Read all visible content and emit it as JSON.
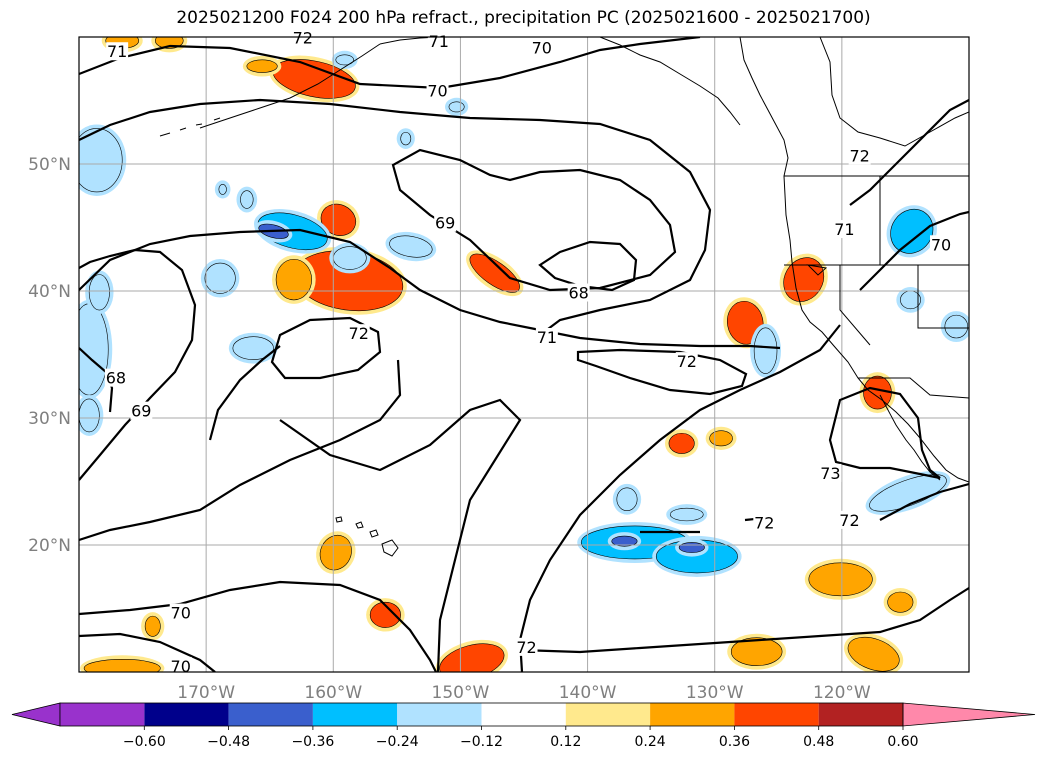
{
  "title": "2025021200 F024 200 hPa refract., precipitation PC (2025021600 - 2025021700)",
  "map": {
    "lon_range": [
      -180,
      -110
    ],
    "lat_range": [
      10,
      60
    ],
    "lon_ticks": [
      {
        "value": -170,
        "label": "170°W"
      },
      {
        "value": -160,
        "label": "160°W"
      },
      {
        "value": -150,
        "label": "150°W"
      },
      {
        "value": -140,
        "label": "140°W"
      },
      {
        "value": -130,
        "label": "130°W"
      },
      {
        "value": -120,
        "label": "120°W"
      }
    ],
    "lat_ticks": [
      {
        "value": 20,
        "label": "20°N"
      },
      {
        "value": 30,
        "label": "30°N"
      },
      {
        "value": 40,
        "label": "40°N"
      },
      {
        "value": 50,
        "label": "50°N"
      }
    ],
    "contour_labels": [
      {
        "text": "70",
        "lon": -143.6,
        "lat": 59.1
      },
      {
        "text": "70",
        "lon": -151.8,
        "lat": 55.7
      },
      {
        "text": "71",
        "lon": -177.0,
        "lat": 58.8
      },
      {
        "text": "72",
        "lon": -162.4,
        "lat": 59.9
      },
      {
        "text": "71",
        "lon": -151.7,
        "lat": 59.6
      },
      {
        "text": "69",
        "lon": -151.2,
        "lat": 45.3
      },
      {
        "text": "68",
        "lon": -140.7,
        "lat": 39.8
      },
      {
        "text": "72",
        "lon": -158.0,
        "lat": 36.6
      },
      {
        "text": "71",
        "lon": -143.2,
        "lat": 36.3
      },
      {
        "text": "72",
        "lon": -132.2,
        "lat": 34.4
      },
      {
        "text": "68",
        "lon": -177.1,
        "lat": 33.1
      },
      {
        "text": "69",
        "lon": -175.1,
        "lat": 30.5
      },
      {
        "text": "73",
        "lon": -120.9,
        "lat": 25.6
      },
      {
        "text": "72",
        "lon": -119.4,
        "lat": 21.9
      },
      {
        "text": "72",
        "lon": -126.1,
        "lat": 21.7
      },
      {
        "text": "70",
        "lon": -172.0,
        "lat": 14.6
      },
      {
        "text": "72",
        "lon": -144.8,
        "lat": 11.9
      },
      {
        "text": "70",
        "lon": -172.0,
        "lat": 10.4
      },
      {
        "text": "72",
        "lon": -118.6,
        "lat": 50.6
      },
      {
        "text": "71",
        "lon": -119.8,
        "lat": 44.8
      },
      {
        "text": "70",
        "lon": -112.2,
        "lat": 43.6
      }
    ],
    "precip_patches": [
      {
        "lon": -161.5,
        "lat": 56.7,
        "rx": 3.3,
        "ry": 1.4,
        "level": "0.36",
        "rot": 12
      },
      {
        "lon": -176.6,
        "lat": 59.7,
        "rx": 1.3,
        "ry": 0.6,
        "level": "0.24",
        "rot": 0
      },
      {
        "lon": -172.9,
        "lat": 59.7,
        "rx": 1.1,
        "ry": 0.6,
        "level": "0.24",
        "rot": 0
      },
      {
        "lon": -165.6,
        "lat": 57.7,
        "rx": 1.2,
        "ry": 0.5,
        "level": "0.24",
        "rot": 0
      },
      {
        "lon": -158.8,
        "lat": 40.8,
        "rx": 4.3,
        "ry": 2.3,
        "level": "0.36",
        "rot": 8
      },
      {
        "lon": -163.1,
        "lat": 40.9,
        "rx": 1.4,
        "ry": 1.6,
        "level": "0.24",
        "rot": 0
      },
      {
        "lon": -159.6,
        "lat": 45.6,
        "rx": 1.4,
        "ry": 1.2,
        "level": "0.36",
        "rot": 25
      },
      {
        "lon": -147.3,
        "lat": 41.4,
        "rx": 2.3,
        "ry": 0.9,
        "level": "0.36",
        "rot": 35
      },
      {
        "lon": -127.6,
        "lat": 37.5,
        "rx": 1.4,
        "ry": 1.7,
        "level": "0.36",
        "rot": -10
      },
      {
        "lon": -123.0,
        "lat": 40.9,
        "rx": 1.5,
        "ry": 1.8,
        "level": "0.36",
        "rot": 30
      },
      {
        "lon": -117.2,
        "lat": 32.0,
        "rx": 1.1,
        "ry": 1.3,
        "level": "0.36",
        "rot": 0
      },
      {
        "lon": -132.6,
        "lat": 28.0,
        "rx": 1.0,
        "ry": 0.8,
        "level": "0.36",
        "rot": 0
      },
      {
        "lon": -129.5,
        "lat": 28.4,
        "rx": 0.9,
        "ry": 0.6,
        "level": "0.24",
        "rot": 0
      },
      {
        "lon": -159.8,
        "lat": 19.4,
        "rx": 1.2,
        "ry": 1.4,
        "level": "0.24",
        "rot": 25
      },
      {
        "lon": -155.9,
        "lat": 14.5,
        "rx": 1.2,
        "ry": 1.0,
        "level": "0.36",
        "rot": 0
      },
      {
        "lon": -149.1,
        "lat": 10.8,
        "rx": 2.6,
        "ry": 1.3,
        "level": "0.36",
        "rot": -15
      },
      {
        "lon": -174.2,
        "lat": 13.6,
        "rx": 0.6,
        "ry": 0.8,
        "level": "0.24",
        "rot": 0
      },
      {
        "lon": -176.6,
        "lat": 10.3,
        "rx": 3.0,
        "ry": 0.7,
        "level": "0.24",
        "rot": 0
      },
      {
        "lon": -120.1,
        "lat": 17.3,
        "rx": 2.5,
        "ry": 1.3,
        "level": "0.24",
        "rot": 0
      },
      {
        "lon": -115.4,
        "lat": 15.5,
        "rx": 1.0,
        "ry": 0.8,
        "level": "0.24",
        "rot": 0
      },
      {
        "lon": -126.7,
        "lat": 11.6,
        "rx": 2.0,
        "ry": 1.1,
        "level": "0.24",
        "rot": 0
      },
      {
        "lon": -117.5,
        "lat": 11.4,
        "rx": 2.1,
        "ry": 1.2,
        "level": "0.24",
        "rot": 20
      },
      {
        "lon": -163.2,
        "lat": 44.7,
        "rx": 2.8,
        "ry": 1.3,
        "level": "-0.36",
        "rot": 15
      },
      {
        "lon": -158.7,
        "lat": 42.6,
        "rx": 1.3,
        "ry": 0.9,
        "level": "-0.24",
        "rot": 0
      },
      {
        "lon": -153.9,
        "lat": 43.5,
        "rx": 1.7,
        "ry": 0.8,
        "level": "-0.24",
        "rot": 10
      },
      {
        "lon": -166.8,
        "lat": 47.2,
        "rx": 0.5,
        "ry": 0.7,
        "level": "-0.24",
        "rot": 0
      },
      {
        "lon": -168.9,
        "lat": 41.0,
        "rx": 1.2,
        "ry": 1.2,
        "level": "-0.24",
        "rot": 0
      },
      {
        "lon": -166.3,
        "lat": 35.5,
        "rx": 1.6,
        "ry": 0.9,
        "level": "-0.24",
        "rot": 0
      },
      {
        "lon": -178.6,
        "lat": 50.3,
        "rx": 2.0,
        "ry": 2.5,
        "level": "-0.24",
        "rot": 0
      },
      {
        "lon": -179.2,
        "lat": 35.4,
        "rx": 1.5,
        "ry": 3.6,
        "level": "-0.24",
        "rot": 0
      },
      {
        "lon": -178.4,
        "lat": 39.9,
        "rx": 0.8,
        "ry": 1.4,
        "level": "-0.24",
        "rot": 0
      },
      {
        "lon": -179.2,
        "lat": 30.2,
        "rx": 0.8,
        "ry": 1.3,
        "level": "-0.24",
        "rot": 0
      },
      {
        "lon": -126.0,
        "lat": 35.3,
        "rx": 0.9,
        "ry": 1.8,
        "level": "-0.24",
        "rot": 0
      },
      {
        "lon": -114.5,
        "lat": 44.7,
        "rx": 1.6,
        "ry": 1.8,
        "level": "-0.36",
        "rot": 35
      },
      {
        "lon": -114.8,
        "lat": 24.1,
        "rx": 3.2,
        "ry": 1.0,
        "level": "-0.24",
        "rot": -20
      },
      {
        "lon": -136.3,
        "lat": 20.2,
        "rx": 4.2,
        "ry": 1.3,
        "level": "-0.36",
        "rot": 0
      },
      {
        "lon": -131.4,
        "lat": 19.1,
        "rx": 3.2,
        "ry": 1.3,
        "level": "-0.36",
        "rot": 0
      },
      {
        "lon": -132.2,
        "lat": 22.4,
        "rx": 1.3,
        "ry": 0.5,
        "level": "-0.24",
        "rot": 0
      },
      {
        "lon": -136.9,
        "lat": 23.6,
        "rx": 0.8,
        "ry": 0.9,
        "level": "-0.24",
        "rot": 0
      },
      {
        "lon": -111.0,
        "lat": 37.2,
        "rx": 0.9,
        "ry": 0.9,
        "level": "-0.24",
        "rot": 0
      },
      {
        "lon": -150.3,
        "lat": 54.5,
        "rx": 0.6,
        "ry": 0.4,
        "level": "-0.24",
        "rot": 0
      },
      {
        "lon": -154.3,
        "lat": 52.0,
        "rx": 0.4,
        "ry": 0.5,
        "level": "-0.24",
        "rot": 0
      },
      {
        "lon": -168.7,
        "lat": 48.0,
        "rx": 0.3,
        "ry": 0.4,
        "level": "-0.24",
        "rot": 0
      },
      {
        "lon": -159.1,
        "lat": 58.2,
        "rx": 0.7,
        "ry": 0.4,
        "level": "-0.24",
        "rot": 0
      },
      {
        "lon": -114.6,
        "lat": 39.3,
        "rx": 0.8,
        "ry": 0.7,
        "level": "-0.24",
        "rot": 0
      },
      {
        "lon": -131.8,
        "lat": 19.8,
        "rx": 1.0,
        "ry": 0.4,
        "level": "-0.48",
        "rot": 0
      },
      {
        "lon": -137.1,
        "lat": 20.3,
        "rx": 1.0,
        "ry": 0.4,
        "level": "-0.48",
        "rot": 0
      },
      {
        "lon": -164.7,
        "lat": 44.7,
        "rx": 1.2,
        "ry": 0.5,
        "level": "-0.48",
        "rot": 15
      }
    ]
  },
  "colorbar": {
    "labels": [
      "−0.60",
      "−0.48",
      "−0.36",
      "−0.24",
      "−0.12",
      "0.12",
      "0.24",
      "0.36",
      "0.48",
      "0.60"
    ],
    "colors": [
      "#9932cc",
      "#00008b",
      "#3a5fcd",
      "#00bfff",
      "#b0e2ff",
      "#ffffff",
      "#ffe98d",
      "#ffa500",
      "#ff4500",
      "#b22222",
      "#ff88aa"
    ],
    "level_colors": {
      "-0.48": "#3a5fcd",
      "-0.36": "#00bfff",
      "-0.24": "#b0e2ff",
      "0.24": "#ffa500",
      "0.36": "#ff4500",
      "0.12": "#ffe98d"
    }
  }
}
